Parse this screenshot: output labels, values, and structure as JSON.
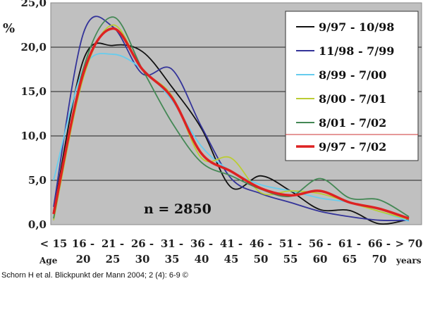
{
  "chart_data": {
    "type": "line",
    "ylabel": "%",
    "ylim": [
      0,
      25
    ],
    "yticks": [
      "0,0",
      "5,0",
      "10,0",
      "15,0",
      "20,0",
      "25,0"
    ],
    "ytick_values": [
      0,
      5,
      10,
      15,
      20,
      25
    ],
    "xlabel_start": "Age",
    "xlabel_end": "years",
    "category_top": [
      "< 15",
      "16 -",
      "21 -",
      "26 -",
      "31 -",
      "36 -",
      "41 -",
      "46 -",
      "51 -",
      "56 -",
      "61 -",
      "66 -",
      "> 70"
    ],
    "category_bottom": [
      "",
      "20",
      "25",
      "30",
      "35",
      "40",
      "45",
      "50",
      "55",
      "60",
      "65",
      "70",
      ""
    ],
    "annotation": "n = 2850",
    "grid": true,
    "legend_position": "top-right",
    "series": [
      {
        "name": "9/97 - 10/98",
        "color": "#111111",
        "values": [
          1.5,
          18.5,
          20.2,
          19.5,
          15.5,
          10.8,
          4.2,
          5.5,
          3.8,
          1.7,
          1.6,
          0.1,
          0.6
        ]
      },
      {
        "name": "11/98 - 7/99",
        "color": "#333399",
        "values": [
          2.0,
          21.5,
          22.3,
          17.0,
          17.5,
          11.0,
          5.2,
          3.5,
          2.5,
          1.5,
          0.9,
          0.5,
          0.5
        ]
      },
      {
        "name": "8/99 - 7/00",
        "color": "#66ccee",
        "values": [
          5.0,
          17.5,
          19.2,
          17.5,
          14.0,
          8.8,
          6.0,
          4.5,
          3.8,
          3.0,
          2.5,
          1.5,
          0.4
        ]
      },
      {
        "name": "8/00 - 7/01",
        "color": "#bbcc33",
        "values": [
          0.5,
          16.5,
          22.5,
          17.5,
          14.5,
          7.5,
          7.5,
          3.6,
          3.8,
          3.5,
          2.5,
          1.5,
          0.6
        ]
      },
      {
        "name": "8/01 - 7/02",
        "color": "#448855",
        "values": [
          0.7,
          17.5,
          23.4,
          17.5,
          11.5,
          7.0,
          5.5,
          4.0,
          3.2,
          5.2,
          3.0,
          2.8,
          0.9
        ]
      },
      {
        "name": "9/97 - 7/02",
        "color": "#dd2222",
        "values": [
          1.2,
          17.0,
          22.1,
          17.5,
          14.3,
          8.0,
          6.0,
          4.1,
          3.3,
          3.8,
          2.5,
          1.8,
          0.7
        ]
      }
    ]
  },
  "caption": "Schorn H et al. Blickpunkt der Mann 2004; 2 (4): 6-9 ©"
}
